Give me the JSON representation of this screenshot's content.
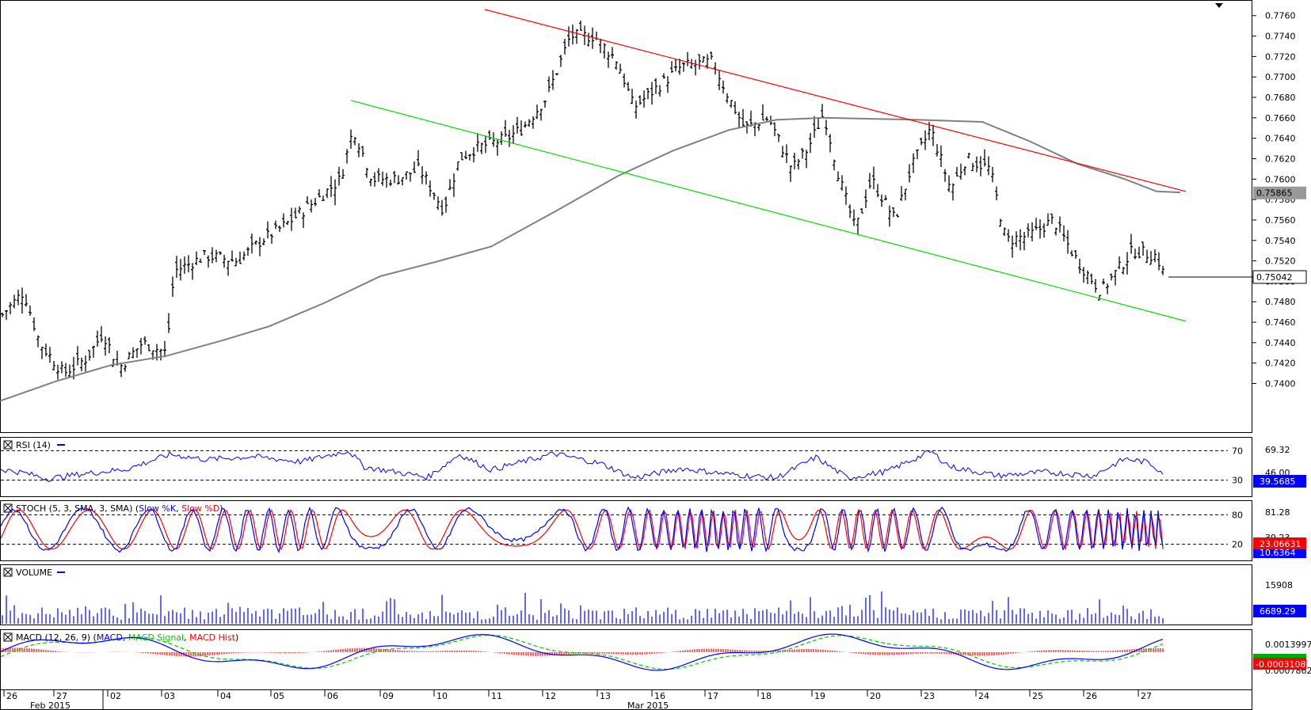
{
  "chart_data": {
    "type": "ohlc",
    "instrument": "",
    "price_axis": {
      "ticks": [
        "0.7760",
        "0.7740",
        "0.7720",
        "0.7700",
        "0.7680",
        "0.7660",
        "0.7640",
        "0.7620",
        "0.7600",
        "0.7580",
        "0.7560",
        "0.7540",
        "0.7520",
        "0.7500",
        "0.7480",
        "0.7460",
        "0.7440",
        "0.7420",
        "0.7400"
      ],
      "range": [
        0.7388,
        0.7766
      ]
    },
    "price_labels": {
      "sma": "0.75865",
      "last": "0.75042"
    },
    "sma_points": [
      [
        0,
        0.7383
      ],
      [
        70,
        0.7402
      ],
      [
        140,
        0.7418
      ],
      [
        210,
        0.7427
      ],
      [
        280,
        0.7442
      ],
      [
        340,
        0.7456
      ],
      [
        410,
        0.7479
      ],
      [
        480,
        0.7505
      ],
      [
        550,
        0.7519
      ],
      [
        620,
        0.7534
      ],
      [
        700,
        0.7568
      ],
      [
        780,
        0.7603
      ],
      [
        850,
        0.7628
      ],
      [
        920,
        0.7648
      ],
      [
        980,
        0.7658
      ],
      [
        1040,
        0.766
      ],
      [
        1100,
        0.7659
      ],
      [
        1160,
        0.7658
      ],
      [
        1240,
        0.7656
      ],
      [
        1300,
        0.7637
      ],
      [
        1360,
        0.7615
      ],
      [
        1420,
        0.76
      ],
      [
        1460,
        0.7588
      ],
      [
        1490,
        0.7587
      ]
    ],
    "resistance_line": {
      "from": [
        612,
        0.7766
      ],
      "to": [
        1497,
        0.7588
      ]
    },
    "support_line": {
      "from": [
        443,
        0.7677
      ],
      "to": [
        1497,
        0.7461
      ]
    },
    "rsi": {
      "title": "RSI (14)",
      "levels": [
        "70",
        "30"
      ],
      "axis_labels": [
        "69.32",
        "46.00"
      ],
      "last": "39.5685",
      "range": [
        20,
        80
      ],
      "key": [
        [
          0,
          45
        ],
        [
          30,
          40
        ],
        [
          60,
          32
        ],
        [
          100,
          38
        ],
        [
          160,
          45
        ],
        [
          215,
          65
        ],
        [
          260,
          58
        ],
        [
          320,
          62
        ],
        [
          380,
          55
        ],
        [
          440,
          70
        ],
        [
          460,
          48
        ],
        [
          540,
          34
        ],
        [
          580,
          65
        ],
        [
          620,
          44
        ],
        [
          700,
          66
        ],
        [
          760,
          52
        ],
        [
          800,
          33
        ],
        [
          860,
          46
        ],
        [
          920,
          38
        ],
        [
          980,
          33
        ],
        [
          1030,
          61
        ],
        [
          1070,
          33
        ],
        [
          1120,
          42
        ],
        [
          1175,
          69
        ],
        [
          1200,
          48
        ],
        [
          1260,
          36
        ],
        [
          1320,
          41
        ],
        [
          1380,
          36
        ],
        [
          1420,
          59
        ],
        [
          1450,
          54
        ],
        [
          1470,
          39
        ]
      ]
    },
    "stoch": {
      "title": "STOCH (5, 3, SMA, 3, SMA)",
      "series": [
        {
          "name": "Slow %K",
          "color": "#0000ff"
        },
        {
          "name": "Slow %D",
          "color": "#ff0000"
        }
      ],
      "levels": [
        "80",
        "20"
      ],
      "axis_labels": [
        "81.28",
        "39.23"
      ],
      "last_d": "23.06631",
      "last_k": "10.6364",
      "range": [
        0,
        100
      ]
    },
    "volume": {
      "title": "VOLUME",
      "axis_labels": [
        "15908"
      ],
      "last": "6689.29",
      "range": [
        0,
        21000
      ]
    },
    "macd": {
      "title": "MACD (12, 26, 9)",
      "series": [
        {
          "name": "MACD",
          "color": "#0000ff"
        },
        {
          "name": "MACD Signal",
          "color": "#00cc00"
        },
        {
          "name": "MACD Hist",
          "color": "#ff0000"
        }
      ],
      "axis_labels": [
        "0.0013997",
        "0.0007862"
      ],
      "last": "-0.0003108",
      "range": [
        -0.0032,
        0.0018
      ]
    },
    "x_axis": {
      "day_labels": [
        "26",
        "27",
        "02",
        "03",
        "04",
        "05",
        "06",
        "09",
        "10",
        "11",
        "12",
        "13",
        "16",
        "17",
        "18",
        "19",
        "20",
        "23",
        "24",
        "25",
        "26",
        "27"
      ],
      "month_labels": [
        "Feb 2015",
        "Mar 2015"
      ]
    },
    "colors": {
      "bars": "#000000",
      "sma": "#808080",
      "resistance": "#ff0000",
      "support": "#00e000",
      "rsi": "#0000ff",
      "volume": "#0000ff",
      "label_blue": "#0000ff",
      "label_red": "#ff0000",
      "label_green": "#00aa00",
      "label_gray": "#999999"
    }
  }
}
